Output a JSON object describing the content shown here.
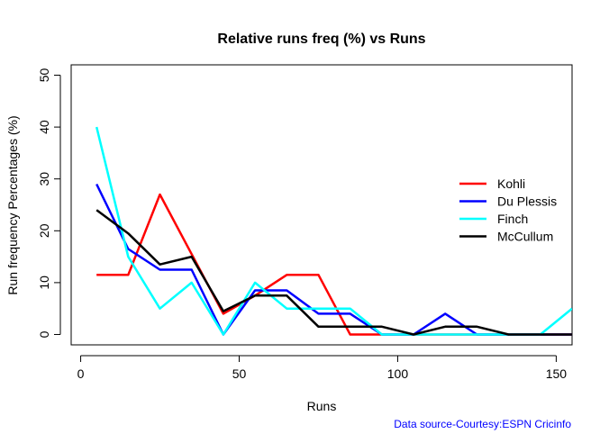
{
  "chart_data": {
    "type": "line",
    "title": "Relative runs freq (%) vs Runs",
    "xlabel": "Runs",
    "ylabel": "Run frequency Percentages (%)",
    "xlim": [
      -3,
      155
    ],
    "ylim": [
      -2,
      52
    ],
    "xticks": [
      0,
      50,
      100,
      150
    ],
    "yticks": [
      0,
      10,
      20,
      30,
      40,
      50
    ],
    "legend_position": "right",
    "x": [
      5,
      15,
      25,
      35,
      45,
      55,
      65,
      75,
      85,
      95,
      105,
      115,
      125,
      135,
      145,
      155
    ],
    "series": [
      {
        "name": "Kohli",
        "color": "#ff0000",
        "values": [
          11.5,
          11.5,
          27,
          15.5,
          4,
          7.5,
          11.5,
          11.5,
          0,
          0,
          0,
          0,
          0,
          0,
          0,
          0
        ]
      },
      {
        "name": "Du Plessis",
        "color": "#0000ff",
        "values": [
          29,
          16.5,
          12.5,
          12.5,
          0,
          8.5,
          8.5,
          4,
          4,
          0,
          0,
          4,
          0,
          0,
          0,
          0
        ]
      },
      {
        "name": "Finch",
        "color": "#00ffff",
        "values": [
          40,
          15,
          5,
          10,
          0,
          10,
          5,
          5,
          5,
          0,
          0,
          0,
          0,
          0,
          0,
          5
        ]
      },
      {
        "name": "McCullum",
        "color": "#000000",
        "values": [
          24,
          19.5,
          13.5,
          15,
          4.5,
          7.5,
          7.5,
          1.5,
          1.5,
          1.5,
          0,
          1.5,
          1.5,
          0,
          0,
          0
        ]
      }
    ],
    "annotation": "Data source-Courtesy:ESPN Cricinfo",
    "annotation_color": "#0000ff"
  }
}
